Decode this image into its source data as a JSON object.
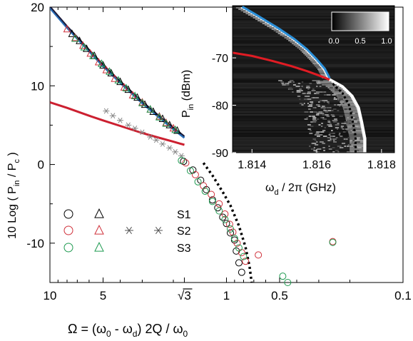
{
  "chart_data": [
    {
      "type": "scatter",
      "panel": "main",
      "xlabel": "Ω = (ω₀ - ωd) 2Q / ω₀",
      "ylabel": "10 Log ( Pin / Pc )",
      "x_scale": "log-reversed",
      "xlim": [
        10,
        0.1
      ],
      "ylim": [
        -15,
        20
      ],
      "x_ticks": [
        "10",
        "5",
        "√3",
        "1",
        "0.5",
        "0.1"
      ],
      "x_tick_values": [
        10,
        5,
        1.732,
        1,
        0.5,
        0.1
      ],
      "y_ticks": [
        "20",
        "10",
        "0",
        "-10"
      ],
      "y_tick_values": [
        20,
        10,
        0,
        -10
      ],
      "legend": [
        {
          "label": "S1",
          "markers": [
            "circle",
            "triangle"
          ],
          "color": "#000000"
        },
        {
          "label": "S2",
          "markers": [
            "circle",
            "triangle",
            "asterisk",
            "asterisk"
          ],
          "color": "#d0303a"
        },
        {
          "label": "S3",
          "markers": [
            "circle",
            "triangle"
          ],
          "color": "#1e9a50"
        }
      ],
      "curves": [
        {
          "id": "blue",
          "color": "#2a6fb8",
          "x": [
            10,
            8,
            6,
            5,
            4,
            3,
            2.5,
            2,
            1.732
          ],
          "y": [
            19.9,
            17.4,
            14.4,
            12.5,
            10.4,
            7.8,
            6.3,
            4.5,
            3.4
          ]
        },
        {
          "id": "dark",
          "color": "#1a1a3a",
          "x": [
            10,
            8,
            6,
            5,
            4,
            3,
            2.5,
            2,
            1.732
          ],
          "y": [
            20.1,
            17.6,
            14.6,
            12.7,
            10.6,
            8.0,
            6.5,
            4.7,
            3.6
          ]
        },
        {
          "id": "red",
          "color": "#cc2030",
          "x": [
            10,
            8,
            6,
            5,
            4,
            3,
            2.5,
            2,
            1.732
          ],
          "y": [
            7.9,
            7.2,
            6.2,
            5.6,
            4.9,
            4.0,
            3.5,
            2.9,
            2.5
          ]
        },
        {
          "id": "dashed",
          "color": "#000000",
          "dashed": true,
          "x": [
            1.35,
            1.2,
            1.05,
            0.95,
            0.85,
            0.78,
            0.74,
            0.72
          ],
          "y": [
            0.2,
            -1.4,
            -3.5,
            -5.2,
            -7.8,
            -10.5,
            -13.0,
            -15.0
          ]
        }
      ],
      "series": [
        {
          "name": "S1",
          "marker": "triangle",
          "color": "#000000",
          "x": [
            7.5,
            6.8,
            6.2,
            5.6,
            5.0,
            4.5,
            4.0,
            3.6,
            3.2,
            2.9,
            2.6,
            2.3,
            2.1,
            1.9
          ],
          "y": [
            16.6,
            15.7,
            14.7,
            13.8,
            12.6,
            11.6,
            10.5,
            9.5,
            8.5,
            7.6,
            6.7,
            5.8,
            5.0,
            4.3
          ]
        },
        {
          "name": "S1",
          "marker": "circle",
          "color": "#000000",
          "x": [
            1.75,
            1.55,
            1.4,
            1.3,
            1.2,
            1.12,
            1.05,
            1.0,
            0.95,
            0.9,
            0.88,
            0.85,
            0.82
          ],
          "y": [
            0.4,
            -0.7,
            -2.0,
            -3.2,
            -4.5,
            -5.5,
            -6.7,
            -7.5,
            -8.7,
            -9.6,
            -11.0,
            -12.5,
            -13.7
          ]
        },
        {
          "name": "S2",
          "marker": "triangle",
          "color": "#d0303a",
          "x": [
            8.0,
            7.2,
            6.5,
            5.9,
            5.3,
            4.8,
            4.3,
            3.8,
            3.4,
            3.0,
            2.7,
            2.4,
            2.2,
            2.0
          ],
          "y": [
            17.2,
            16.1,
            15.1,
            14.1,
            13.0,
            12.0,
            10.9,
            9.8,
            8.8,
            7.9,
            7.0,
            6.1,
            5.3,
            4.6
          ]
        },
        {
          "name": "S2",
          "marker": "circle",
          "color": "#d0303a",
          "x": [
            1.7,
            1.5,
            1.35,
            1.22,
            1.1,
            1.02,
            0.96,
            0.92,
            0.87,
            0.82,
            0.78,
            0.66,
            0.25
          ],
          "y": [
            0.2,
            -1.3,
            -2.7,
            -3.8,
            -5.0,
            -6.3,
            -7.6,
            -8.6,
            -10.0,
            -11.2,
            -12.3,
            -11.5,
            -9.8
          ]
        },
        {
          "name": "S2",
          "marker": "asterisk",
          "color": "#888888",
          "x": [
            4.8,
            4.4,
            4.0,
            3.6,
            3.3,
            3.0,
            2.7,
            2.5,
            2.3,
            2.1,
            1.95,
            1.8
          ],
          "y": [
            6.8,
            6.2,
            5.6,
            5.0,
            4.6,
            4.1,
            3.5,
            3.1,
            2.6,
            2.1,
            1.6,
            1.1
          ]
        },
        {
          "name": "S3",
          "marker": "triangle",
          "color": "#1e9a50",
          "x": [
            7.2,
            6.4,
            5.7,
            5.1,
            4.6,
            4.1,
            3.7,
            3.3,
            3.0,
            2.7,
            2.4,
            2.2,
            1.95
          ],
          "y": [
            16.0,
            14.9,
            13.8,
            12.8,
            11.8,
            10.7,
            9.7,
            8.7,
            7.8,
            7.0,
            6.0,
            5.2,
            4.4
          ]
        },
        {
          "name": "S3",
          "marker": "circle",
          "color": "#1e9a50",
          "x": [
            1.8,
            1.6,
            1.45,
            1.32,
            1.2,
            1.1,
            1.02,
            0.95,
            0.9,
            0.85,
            0.8,
            0.48,
            0.45,
            0.25
          ],
          "y": [
            0.5,
            -0.8,
            -2.2,
            -3.4,
            -4.7,
            -5.9,
            -7.0,
            -8.2,
            -9.4,
            -10.6,
            -11.7,
            -14.2,
            -15.0,
            -9.9
          ]
        }
      ]
    },
    {
      "type": "heatmap",
      "panel": "inset",
      "xlabel": "ωd / 2π (GHz)",
      "ylabel": "Pin (dBm)",
      "xlim": [
        1.8134,
        1.8184
      ],
      "ylim": [
        -90,
        -59
      ],
      "x_ticks": [
        "1.814",
        "1.816",
        "1.818"
      ],
      "x_tick_values": [
        1.814,
        1.816,
        1.818
      ],
      "y_ticks": [
        "-70",
        "-80",
        "-90"
      ],
      "y_tick_values": [
        -70,
        -80,
        -90
      ],
      "colorbar": {
        "ticks": [
          "0.0",
          "0.5",
          "1.0"
        ],
        "tick_values": [
          0,
          0.5,
          1
        ],
        "colormap": "gray"
      },
      "curves": [
        {
          "id": "blue",
          "color": "#2a8fd8",
          "x": [
            1.8137,
            1.8142,
            1.8148,
            1.8153,
            1.8157,
            1.816,
            1.81625,
            1.8164
          ],
          "y": [
            -59.2,
            -61.2,
            -63.7,
            -66.0,
            -68.2,
            -70.3,
            -72.3,
            -74.3
          ]
        },
        {
          "id": "red",
          "color": "#e01c24",
          "x": [
            1.8134,
            1.814,
            1.8146,
            1.8152,
            1.8157,
            1.8161,
            1.8164
          ],
          "y": [
            -68.9,
            -69.6,
            -70.6,
            -71.7,
            -72.8,
            -73.8,
            -74.6
          ]
        },
        {
          "id": "white",
          "color": "#ffffff",
          "x": [
            1.8164,
            1.8168,
            1.8171,
            1.8173,
            1.8174,
            1.8175,
            1.8175
          ],
          "y": [
            -74.5,
            -76.0,
            -78.0,
            -80.5,
            -83.5,
            -87.0,
            -90.0
          ]
        },
        {
          "id": "dashed",
          "color": "#000000",
          "dashed": true,
          "x": [
            1.8165,
            1.8168,
            1.817,
            1.8171,
            1.8172,
            1.8172
          ],
          "y": [
            -75.5,
            -77.5,
            -80.0,
            -83.0,
            -86.5,
            -90.0
          ]
        }
      ]
    }
  ]
}
